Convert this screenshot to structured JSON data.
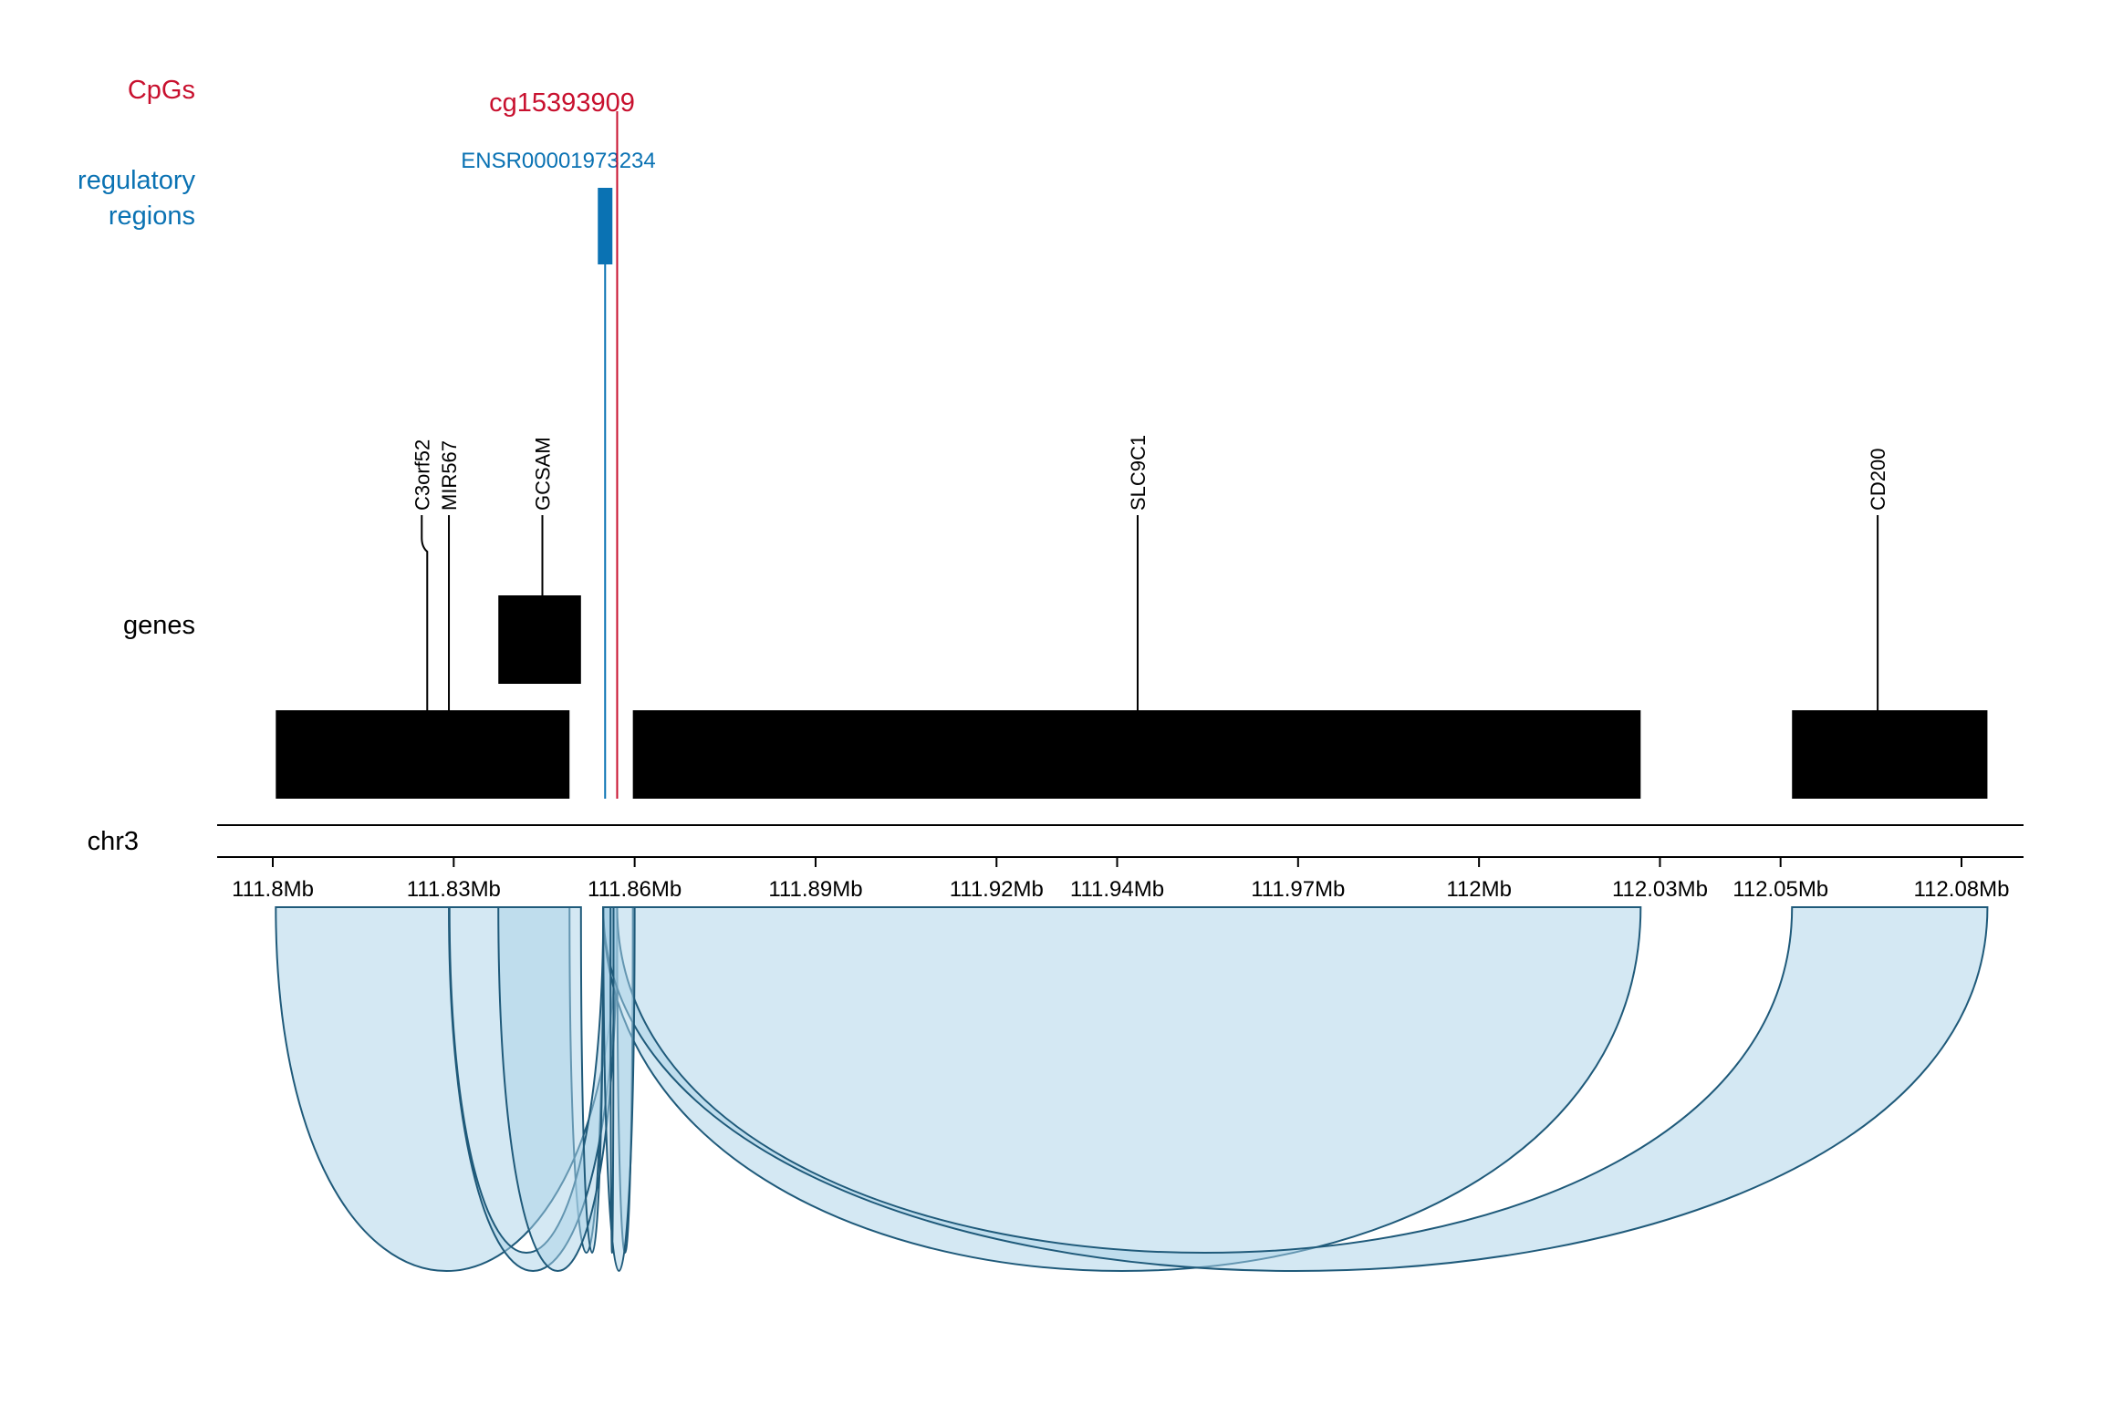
{
  "tracks": {
    "cpgs": {
      "label": "CpGs",
      "color": "#c8102e"
    },
    "regulatory": {
      "label_line1": "regulatory",
      "label_line2": "regions",
      "color": "#0a72b3"
    },
    "genes": {
      "label": "genes",
      "color": "#000000"
    },
    "chromosome": {
      "label": "chr3"
    }
  },
  "cpg": {
    "name": "cg15393909",
    "position_mb": 111.8571
  },
  "regulatory_region": {
    "name": "ENSR00001973234",
    "start_mb": 111.8548,
    "end_mb": 111.8571
  },
  "axis": {
    "range_mb": [
      111.79,
      112.1
    ],
    "ticks": [
      {
        "value": 111.8,
        "label": "111.8Mb"
      },
      {
        "value": 111.83,
        "label": "111.83Mb"
      },
      {
        "value": 111.86,
        "label": "111.86Mb"
      },
      {
        "value": 111.89,
        "label": "111.89Mb"
      },
      {
        "value": 111.92,
        "label": "111.92Mb"
      },
      {
        "value": 111.94,
        "label": "111.94Mb"
      },
      {
        "value": 111.97,
        "label": "111.97Mb"
      },
      {
        "value": 112.0,
        "label": "112Mb"
      },
      {
        "value": 112.03,
        "label": "112.03Mb"
      },
      {
        "value": 112.05,
        "label": "112.05Mb"
      },
      {
        "value": 112.08,
        "label": "112.08Mb"
      }
    ]
  },
  "genes": [
    {
      "name": "C3orf52",
      "start_mb": 111.8005,
      "end_mb": 111.8492,
      "row": 1,
      "label_mb": 111.8247
    },
    {
      "name": "MIR567",
      "start_mb": 111.8292,
      "end_mb": 111.8293,
      "row": 1,
      "label_mb": 111.8292
    },
    {
      "name": "GCSAM",
      "start_mb": 111.8374,
      "end_mb": 111.8511,
      "row": 0,
      "label_mb": 111.8447
    },
    {
      "name": "SLC9C1",
      "start_mb": 111.8597,
      "end_mb": 112.0268,
      "row": 1,
      "label_mb": 111.9434
    },
    {
      "name": "CD200",
      "start_mb": 112.0519,
      "end_mb": 112.0843,
      "row": 1,
      "label_mb": 112.0661
    }
  ],
  "interactions": [
    {
      "from_mb": [
        111.8005,
        111.8492
      ],
      "to_mb": [
        111.8548,
        111.8571
      ]
    },
    {
      "from_mb": [
        111.8292,
        111.8293
      ],
      "to_mb": [
        111.8548,
        111.8571
      ]
    },
    {
      "from_mb": [
        111.8374,
        111.8511
      ],
      "to_mb": [
        111.8548,
        111.8571
      ]
    },
    {
      "from_mb": [
        111.8548,
        111.8571
      ],
      "to_mb": [
        111.8597,
        112.0268
      ]
    },
    {
      "from_mb": [
        111.8548,
        111.8571
      ],
      "to_mb": [
        112.0519,
        112.0843
      ]
    },
    {
      "from_mb": [
        111.8548,
        111.856
      ],
      "to_mb": [
        111.8565,
        111.86
      ]
    }
  ],
  "colors": {
    "gene_fill": "#000000",
    "arc_fill": "#a9d1e7",
    "arc_stroke": "#1f5a7a",
    "cpg": "#c8102e",
    "regulatory": "#0a72b3"
  }
}
